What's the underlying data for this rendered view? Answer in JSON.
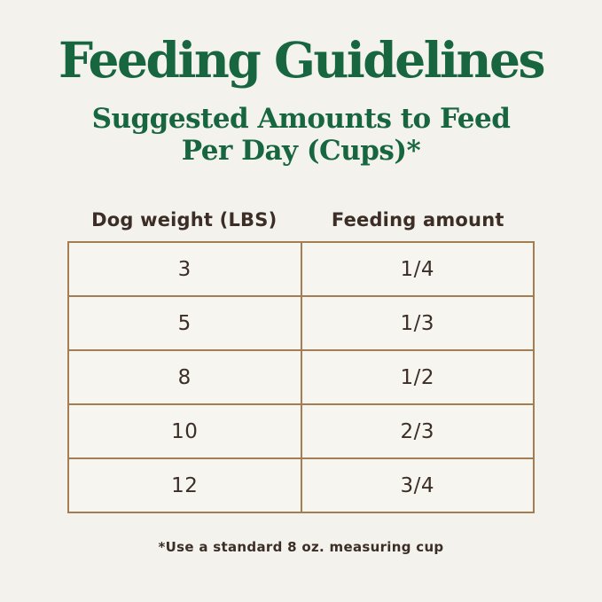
{
  "header": {
    "title": "Feeding Guidelines",
    "subtitle_line1": "Suggested Amounts to Feed",
    "subtitle_line2": "Per Day (Cups)*"
  },
  "chart_data": {
    "type": "table",
    "title": "Feeding Guidelines",
    "subtitle": "Suggested Amounts to Feed Per Day (Cups)*",
    "columns": [
      "Dog weight (LBS)",
      "Feeding amount"
    ],
    "rows": [
      [
        "3",
        "1/4"
      ],
      [
        "5",
        "1/3"
      ],
      [
        "8",
        "1/2"
      ],
      [
        "10",
        "2/3"
      ],
      [
        "12",
        "3/4"
      ]
    ],
    "footnote": "*Use a standard 8 oz. measuring cup",
    "grid": true,
    "legend_position": "none"
  },
  "colors": {
    "background": "#f3f2ec",
    "heading_green": "#176640",
    "text_dark": "#3c2e27",
    "table_border": "#a57d52",
    "cell_background": "#f6f5ef"
  }
}
